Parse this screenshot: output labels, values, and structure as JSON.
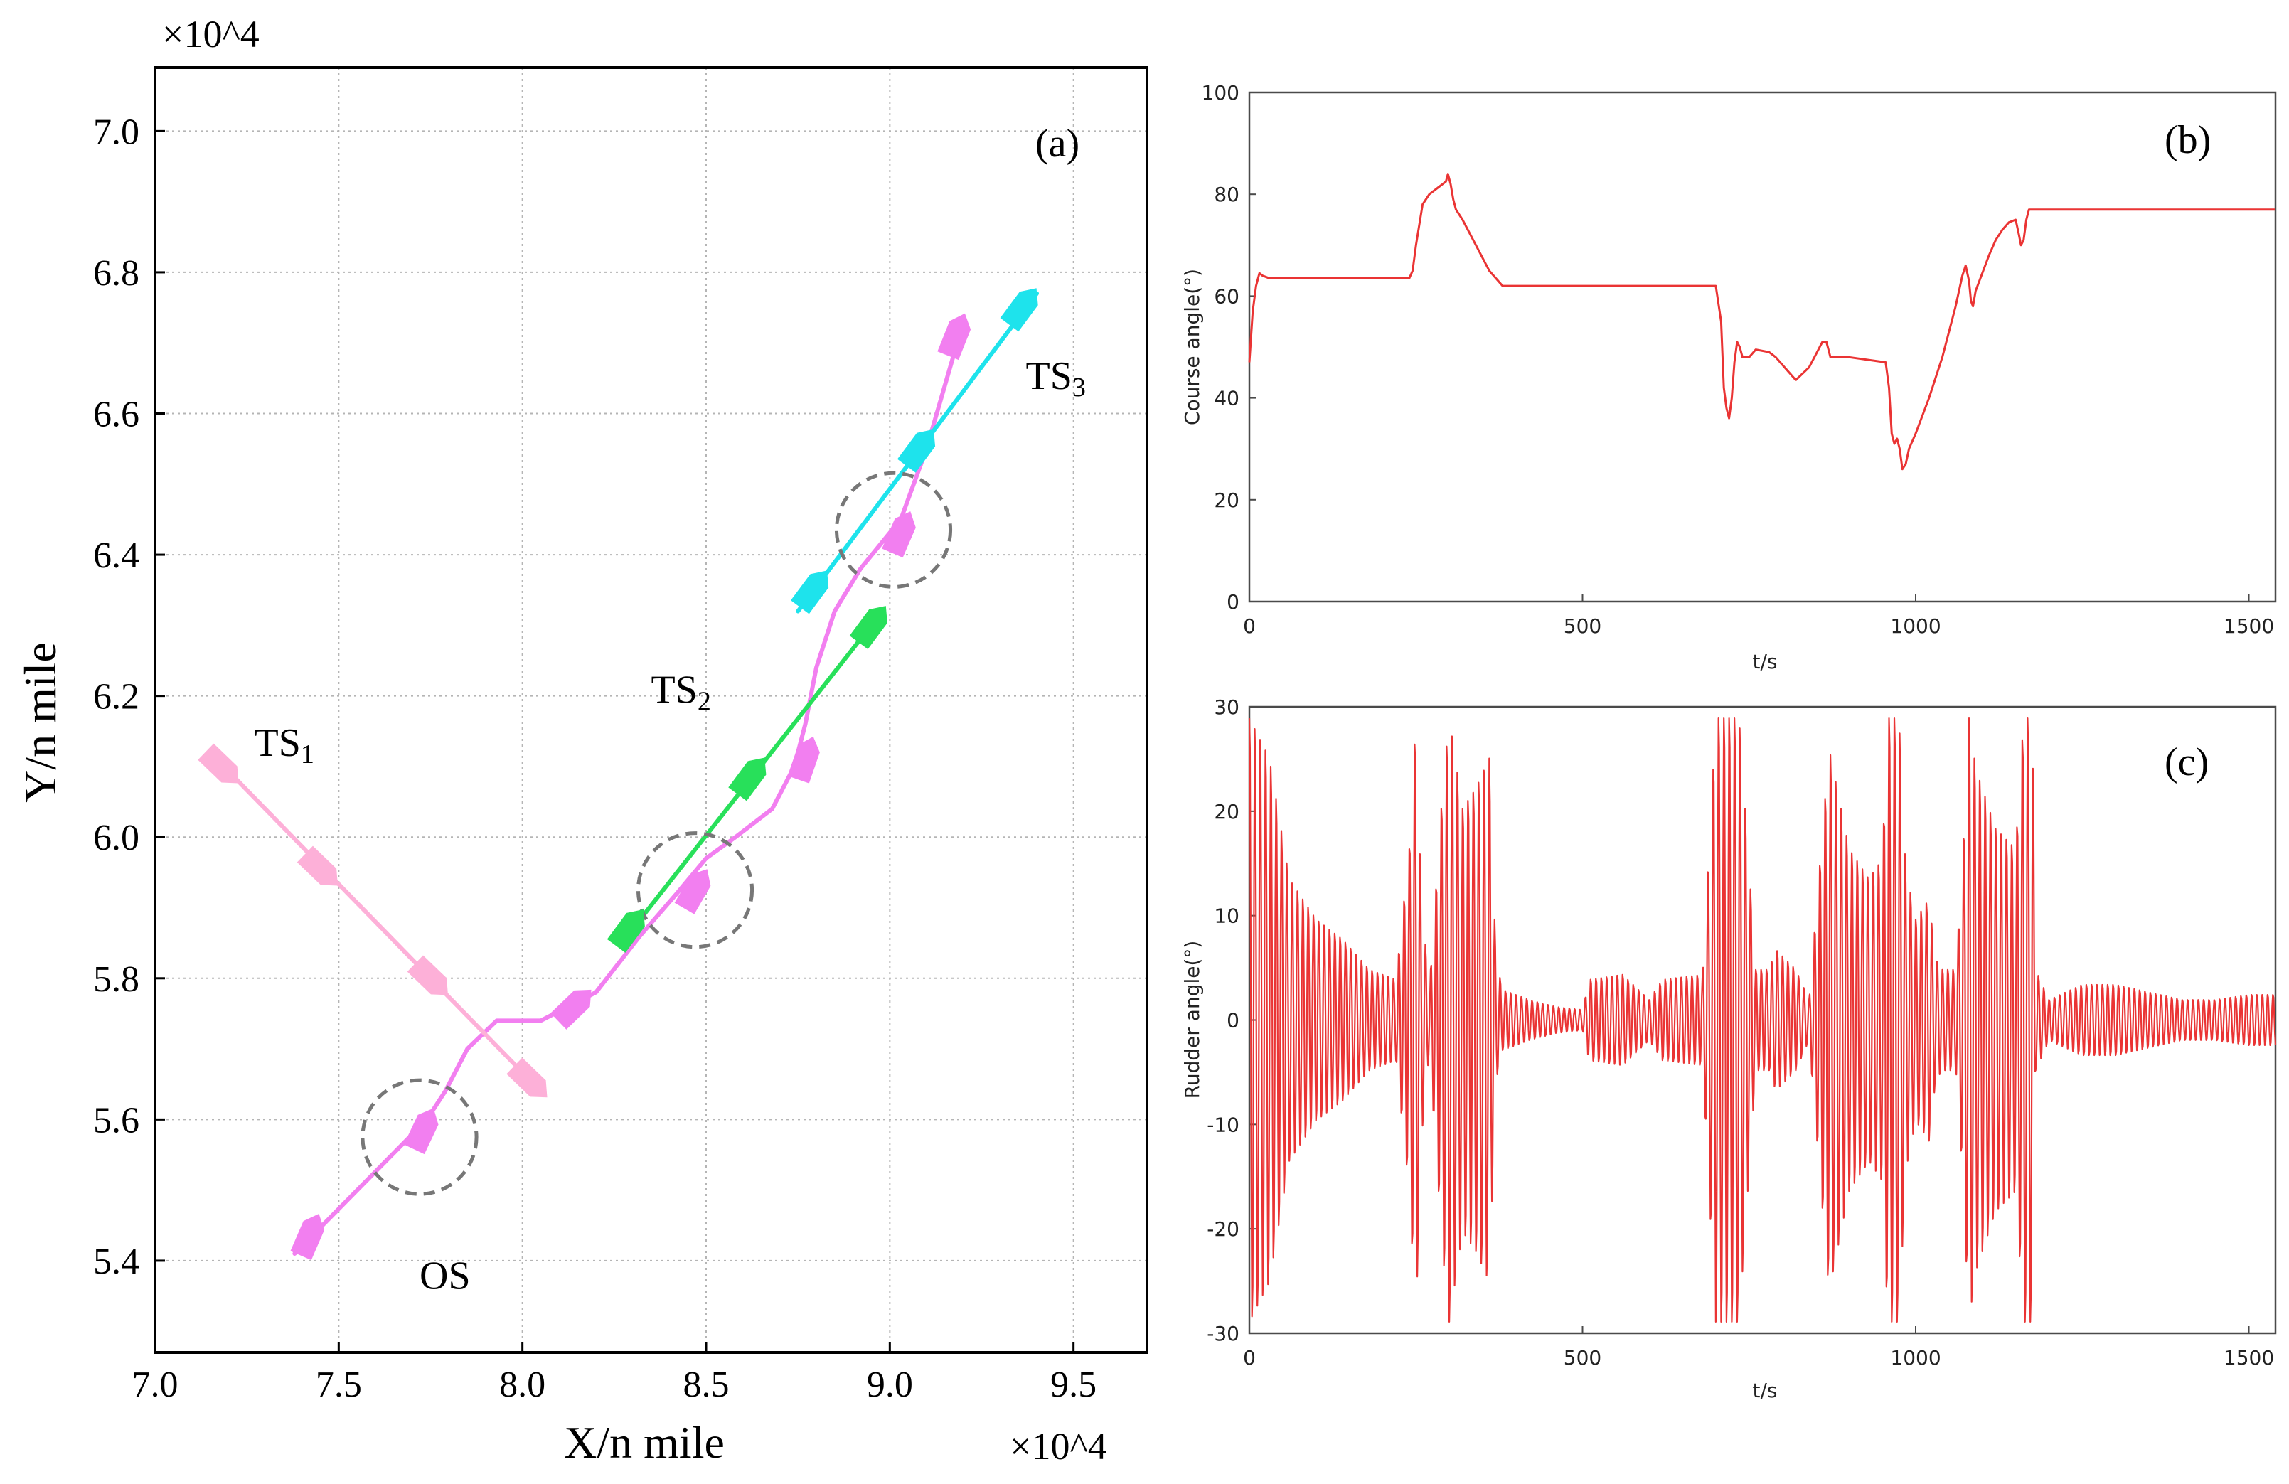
{
  "figure": {
    "caption": ""
  },
  "chart_data": [
    {
      "id": "a",
      "type": "line",
      "panel_label": "(a)",
      "title": "",
      "xlabel": "X/n mile",
      "ylabel": "Y/n mile",
      "x_exponent": "×10^4",
      "y_exponent": "×10^4",
      "xlim": [
        7.0,
        9.7
      ],
      "ylim": [
        5.27,
        7.09
      ],
      "xticks": [
        7.0,
        7.5,
        8.0,
        8.5,
        9.0,
        9.5
      ],
      "xtick_labels": [
        "7.0",
        "7.5",
        "8.0",
        "8.5",
        "9.0",
        "9.5"
      ],
      "yticks": [
        5.4,
        5.6,
        5.8,
        6.0,
        6.2,
        6.4,
        6.6,
        6.8,
        7.0
      ],
      "ytick_labels": [
        "5.4",
        "5.6",
        "5.8",
        "6.0",
        "6.2",
        "6.4",
        "6.6",
        "6.8",
        "7.0"
      ],
      "grid": true,
      "series": [
        {
          "name": "OS",
          "label": "OS",
          "color": "#f27ff0",
          "label_at": [
            7.72,
            5.36
          ],
          "x": [
            7.38,
            7.74,
            7.79,
            7.85,
            7.93,
            8.05,
            8.2,
            8.32,
            8.42,
            8.5,
            8.58,
            8.68,
            8.74,
            8.77,
            8.8,
            8.85,
            8.92,
            9.03,
            9.1,
            9.2
          ],
          "y": [
            5.41,
            5.6,
            5.64,
            5.7,
            5.74,
            5.74,
            5.78,
            5.86,
            5.92,
            5.97,
            6.0,
            6.04,
            6.1,
            6.16,
            6.24,
            6.32,
            6.38,
            6.45,
            6.55,
            6.73
          ],
          "markers": [
            [
              7.42,
              5.435,
              1.2
            ],
            [
              7.73,
              5.585,
              1.1
            ],
            [
              8.14,
              5.76,
              0.5
            ],
            [
              8.47,
              5.925,
              0.9
            ],
            [
              8.77,
              6.11,
              1.5
            ],
            [
              9.03,
              6.43,
              1.2
            ],
            [
              9.18,
              6.71,
              1.3
            ]
          ]
        },
        {
          "name": "TS1",
          "label": "TS1",
          "color": "#fdb0d8",
          "label_at": [
            7.27,
            6.115
          ],
          "x": [
            7.15,
            8.05
          ],
          "y": [
            6.12,
            5.64
          ],
          "markers": [
            [
              7.18,
              6.1,
              -0.5
            ],
            [
              7.45,
              5.955,
              -0.5
            ],
            [
              7.75,
              5.8,
              -0.5
            ],
            [
              8.02,
              5.655,
              -0.5
            ]
          ]
        },
        {
          "name": "TS2",
          "label": "TS2",
          "color": "#28e05a",
          "label_at": [
            8.35,
            6.19
          ],
          "x": [
            8.27,
            8.98
          ],
          "y": [
            5.85,
            6.32
          ],
          "markers": [
            [
              8.29,
              5.87,
              0.7
            ],
            [
              8.62,
              6.085,
              0.7
            ],
            [
              8.95,
              6.3,
              0.7
            ]
          ]
        },
        {
          "name": "TS3",
          "label": "TS3",
          "color": "#1ee3ec",
          "label_at": [
            9.37,
            6.635
          ],
          "x": [
            8.75,
            9.4
          ],
          "y": [
            6.32,
            6.77
          ],
          "markers": [
            [
              8.79,
              6.35,
              0.7
            ],
            [
              9.08,
              6.55,
              0.7
            ],
            [
              9.36,
              6.75,
              0.7
            ]
          ]
        }
      ],
      "encounter_circles": [
        {
          "x": 7.72,
          "y": 5.575
        },
        {
          "x": 8.47,
          "y": 5.925
        },
        {
          "x": 9.01,
          "y": 6.435
        }
      ]
    },
    {
      "id": "b",
      "type": "line",
      "panel_label": "(b)",
      "title": "",
      "xlabel": "t/s",
      "ylabel": "Course angle(°)",
      "xlim": [
        0,
        1540
      ],
      "ylim": [
        0,
        100
      ],
      "xticks": [
        0,
        500,
        1000,
        1500
      ],
      "xtick_labels": [
        "0",
        "500",
        "1000",
        "1500"
      ],
      "yticks": [
        0,
        20,
        40,
        60,
        80,
        100
      ],
      "ytick_labels": [
        "0",
        "20",
        "40",
        "60",
        "80",
        "100"
      ],
      "grid": false,
      "series": [
        {
          "name": "Course angle",
          "color": "#ea3434",
          "x": [
            0,
            5,
            10,
            15,
            20,
            30,
            240,
            245,
            250,
            260,
            270,
            285,
            290,
            295,
            298,
            302,
            306,
            310,
            320,
            340,
            360,
            380,
            700,
            708,
            712,
            716,
            720,
            724,
            728,
            732,
            736,
            740,
            750,
            760,
            780,
            790,
            800,
            820,
            840,
            850,
            860,
            866,
            872,
            880,
            895,
            900,
            955,
            960,
            964,
            968,
            972,
            976,
            980,
            985,
            990,
            1000,
            1020,
            1040,
            1060,
            1070,
            1075,
            1080,
            1083,
            1086,
            1090,
            1100,
            1110,
            1120,
            1130,
            1140,
            1150,
            1155,
            1158,
            1162,
            1166,
            1170,
            1175,
            1540
          ],
          "y": [
            47,
            57,
            62,
            64.5,
            64,
            63.5,
            63.5,
            65,
            70,
            78,
            80,
            81.5,
            82,
            82.5,
            84,
            82,
            79,
            77,
            75,
            70,
            65,
            62,
            62,
            55,
            42,
            38,
            36,
            40,
            47,
            51,
            50,
            48,
            48,
            49.5,
            49,
            48,
            46.5,
            43.5,
            46,
            48.5,
            51,
            51,
            48,
            48,
            48,
            48,
            47,
            42,
            33,
            31,
            32,
            30,
            26,
            27,
            30,
            33,
            40,
            48,
            58,
            64,
            66,
            63,
            59,
            58,
            61,
            64.5,
            68,
            71,
            73,
            74.5,
            75,
            72,
            70,
            71,
            75,
            77,
            77,
            77
          ]
        }
      ]
    },
    {
      "id": "c",
      "type": "line",
      "panel_label": "(c)",
      "title": "",
      "xlabel": "t/s",
      "ylabel": "Rudder angle(°)",
      "xlim": [
        0,
        1540
      ],
      "ylim": [
        -30,
        30
      ],
      "xticks": [
        0,
        500,
        1000,
        1500
      ],
      "xtick_labels": [
        "0",
        "500",
        "1000",
        "1500"
      ],
      "yticks": [
        -30,
        -20,
        -10,
        0,
        10,
        20,
        30
      ],
      "ytick_labels": [
        "-30",
        "-20",
        "-10",
        "0",
        "10",
        "20",
        "30"
      ],
      "grid": false,
      "signal": {
        "description": "oscillating rudder command, values in degrees",
        "period_s": 8,
        "baseline": 0,
        "envelope": [
          [
            0,
            30
          ],
          [
            30,
            26
          ],
          [
            60,
            14
          ],
          [
            100,
            10
          ],
          [
            140,
            8
          ],
          [
            180,
            5
          ],
          [
            220,
            4
          ],
          [
            240,
            17
          ],
          [
            250,
            30
          ],
          [
            258,
            12
          ],
          [
            270,
            3
          ],
          [
            290,
            23
          ],
          [
            300,
            30
          ],
          [
            320,
            21
          ],
          [
            340,
            23
          ],
          [
            360,
            26
          ],
          [
            370,
            6
          ],
          [
            380,
            3
          ],
          [
            420,
            2
          ],
          [
            460,
            1.3
          ],
          [
            500,
            1
          ],
          [
            510,
            4
          ],
          [
            560,
            4.5
          ],
          [
            600,
            2
          ],
          [
            620,
            4
          ],
          [
            680,
            4.5
          ],
          [
            700,
            30
          ],
          [
            735,
            30
          ],
          [
            750,
            15
          ],
          [
            760,
            5
          ],
          [
            780,
            5
          ],
          [
            790,
            7
          ],
          [
            820,
            5
          ],
          [
            840,
            2
          ],
          [
            870,
            27
          ],
          [
            900,
            17
          ],
          [
            930,
            14
          ],
          [
            950,
            16
          ],
          [
            958,
            30
          ],
          [
            975,
            30
          ],
          [
            985,
            15
          ],
          [
            1000,
            10
          ],
          [
            1020,
            12
          ],
          [
            1030,
            6
          ],
          [
            1040,
            5
          ],
          [
            1060,
            5
          ],
          [
            1070,
            15
          ],
          [
            1080,
            30
          ],
          [
            1090,
            25
          ],
          [
            1120,
            19
          ],
          [
            1150,
            17
          ],
          [
            1162,
            30
          ],
          [
            1175,
            30
          ],
          [
            1180,
            5
          ],
          [
            1200,
            2
          ],
          [
            1250,
            3.5
          ],
          [
            1300,
            3.5
          ],
          [
            1400,
            2
          ],
          [
            1450,
            2
          ],
          [
            1500,
            2.5
          ],
          [
            1540,
            2.5
          ]
        ]
      }
    }
  ]
}
